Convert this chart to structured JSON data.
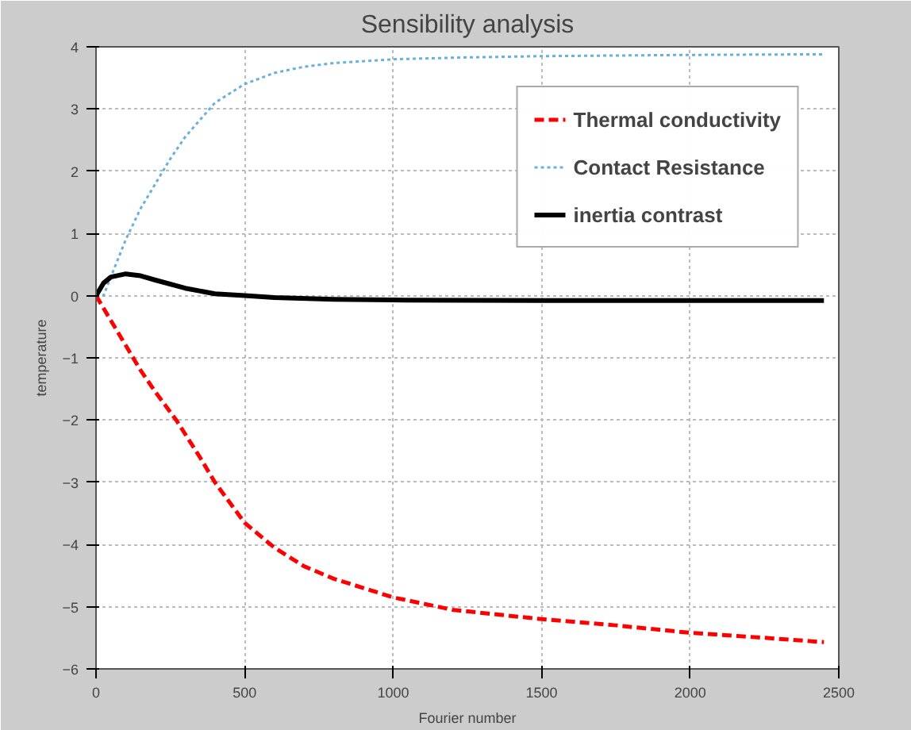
{
  "chart_data": {
    "type": "line",
    "title": "Sensibility analysis",
    "xlabel": "Fourier number",
    "ylabel": "temperature",
    "xlim": [
      0,
      2500
    ],
    "xticks": [
      0,
      500,
      1000,
      1500,
      2000,
      2500
    ],
    "ylim": [
      -6,
      4
    ],
    "yticks": [
      -6,
      -5,
      -4,
      -3,
      -2,
      -1,
      0,
      1,
      2,
      3,
      4
    ],
    "grid": true,
    "legend": "top right",
    "marker": "none",
    "series": [
      {
        "name": "Thermal conductivity",
        "color": "#ff0000",
        "line_style": "dashed",
        "x": [
          0,
          50,
          100,
          150,
          200,
          270,
          350,
          400,
          500,
          600,
          700,
          800,
          1000,
          1200,
          1500,
          1750,
          2000,
          2250,
          2450
        ],
        "values": [
          0,
          -0.4,
          -0.8,
          -1.2,
          -1.55,
          -2.0,
          -2.6,
          -3.0,
          -3.65,
          -4.05,
          -4.35,
          -4.55,
          -4.85,
          -5.05,
          -5.2,
          -5.3,
          -5.42,
          -5.5,
          -5.57
        ]
      },
      {
        "name": "Contact Resistance",
        "color": "#6ab0d8",
        "line_style": "dotted",
        "x": [
          0,
          25,
          50,
          100,
          150,
          200,
          250,
          300,
          400,
          500,
          600,
          700,
          800,
          1000,
          1250,
          1500,
          2000,
          2450
        ],
        "values": [
          0,
          0,
          0.3,
          0.9,
          1.4,
          1.8,
          2.2,
          2.55,
          3.1,
          3.4,
          3.58,
          3.68,
          3.74,
          3.8,
          3.83,
          3.85,
          3.87,
          3.88
        ]
      },
      {
        "name": "inertia contrast",
        "color": "#000000",
        "line_style": "solid",
        "x": [
          0,
          25,
          50,
          100,
          150,
          200,
          300,
          400,
          500,
          600,
          800,
          1000,
          1500,
          2450
        ],
        "values": [
          0,
          0.2,
          0.3,
          0.35,
          0.32,
          0.25,
          0.12,
          0.03,
          0,
          -0.03,
          -0.06,
          -0.07,
          -0.08,
          -0.08
        ]
      }
    ]
  }
}
